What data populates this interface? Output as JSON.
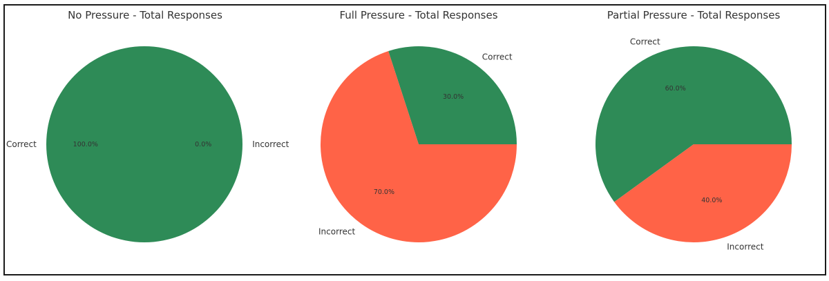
{
  "colors": {
    "Correct": "#2e8b57",
    "Incorrect": "#ff6347"
  },
  "chart_data": [
    {
      "type": "pie",
      "title": "No Pressure - Total Responses",
      "categories": [
        "Correct",
        "Incorrect"
      ],
      "values": [
        100.0,
        0.0
      ],
      "percent_labels": [
        "100.0%",
        "0.0%"
      ]
    },
    {
      "type": "pie",
      "title": "Full Pressure - Total Responses",
      "categories": [
        "Correct",
        "Incorrect"
      ],
      "values": [
        30.0,
        70.0
      ],
      "percent_labels": [
        "30.0%",
        "70.0%"
      ]
    },
    {
      "type": "pie",
      "title": "Partial Pressure - Total Responses",
      "categories": [
        "Correct",
        "Incorrect"
      ],
      "values": [
        60.0,
        40.0
      ],
      "percent_labels": [
        "60.0%",
        "40.0%"
      ]
    }
  ]
}
